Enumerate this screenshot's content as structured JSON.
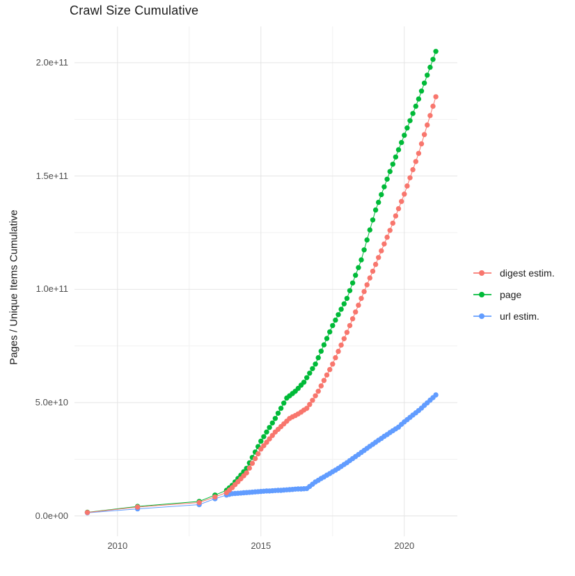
{
  "title": "Crawl Size Cumulative",
  "y_axis": {
    "label": "Pages / Unique Items Cumulative",
    "ticks": [
      {
        "v": 0,
        "label": "0.0e+00"
      },
      {
        "v": 50,
        "label": "5.0e+10"
      },
      {
        "v": 100,
        "label": "1.0e+11"
      },
      {
        "v": 150,
        "label": "1.5e+11"
      },
      {
        "v": 200,
        "label": "2.0e+11"
      }
    ],
    "minor": [
      25,
      75,
      125,
      175
    ]
  },
  "x_axis": {
    "ticks": [
      {
        "v": 2010,
        "label": "2010"
      },
      {
        "v": 2015,
        "label": "2015"
      },
      {
        "v": 2020,
        "label": "2020"
      }
    ],
    "minor": [
      2012.5,
      2017.5
    ]
  },
  "legend": {
    "items": [
      {
        "label": "digest estim.",
        "color": "#F8766D"
      },
      {
        "label": "page",
        "color": "#00BA38"
      },
      {
        "label": "url estim.",
        "color": "#619CFF"
      }
    ]
  },
  "colors": {
    "background": "#ffffff",
    "grid_major": "#e4e4e4",
    "grid_minor": "#f1f1f1",
    "text_dark": "#1a1a1a",
    "text_tick": "#4d4d4d",
    "series_digest": "#F8766D",
    "series_page": "#00BA38",
    "series_url": "#619CFF"
  },
  "chart_data": {
    "type": "line",
    "title": "Crawl Size Cumulative",
    "xlabel": "",
    "ylabel": "Pages / Unique Items Cumulative",
    "x_unit": "year (decimal date of crawl)",
    "y_unit": "cumulative items, billions (1e9)",
    "xlim": [
      2008.5,
      2021.85
    ],
    "ylim": [
      -9,
      216
    ],
    "grid": true,
    "legend_position": "right",
    "marker": "point",
    "series": [
      {
        "name": "page",
        "color": "#00BA38",
        "points": [
          [
            2008.95,
            1.6
          ],
          [
            2010.7,
            4.2
          ],
          [
            2012.85,
            6.4
          ],
          [
            2013.4,
            9.2
          ],
          [
            2013.8,
            11.3
          ],
          [
            2013.9,
            12.4
          ],
          [
            2014.0,
            13.5
          ],
          [
            2014.1,
            15.0
          ],
          [
            2014.2,
            16.5
          ],
          [
            2014.3,
            18.0
          ],
          [
            2014.4,
            19.5
          ],
          [
            2014.5,
            21.0
          ],
          [
            2014.6,
            23.4
          ],
          [
            2014.7,
            25.8
          ],
          [
            2014.8,
            28.2
          ],
          [
            2014.9,
            30.6
          ],
          [
            2015.0,
            33.0
          ],
          [
            2015.1,
            35.0
          ],
          [
            2015.2,
            37.0
          ],
          [
            2015.3,
            39.0
          ],
          [
            2015.4,
            41.0
          ],
          [
            2015.5,
            43.0
          ],
          [
            2015.6,
            45.3
          ],
          [
            2015.7,
            47.5
          ],
          [
            2015.8,
            49.8
          ],
          [
            2015.9,
            52.0
          ],
          [
            2016.0,
            53.0
          ],
          [
            2016.1,
            54.0
          ],
          [
            2016.2,
            55.0
          ],
          [
            2016.3,
            56.3
          ],
          [
            2016.4,
            57.7
          ],
          [
            2016.5,
            59.0
          ],
          [
            2016.6,
            61.0
          ],
          [
            2016.7,
            63.0
          ],
          [
            2016.8,
            65.0
          ],
          [
            2016.9,
            67.0
          ],
          [
            2017.0,
            69.8
          ],
          [
            2017.1,
            72.7
          ],
          [
            2017.2,
            75.5
          ],
          [
            2017.3,
            78.3
          ],
          [
            2017.4,
            81.2
          ],
          [
            2017.5,
            84.0
          ],
          [
            2017.6,
            86.4
          ],
          [
            2017.7,
            88.8
          ],
          [
            2017.8,
            91.2
          ],
          [
            2017.9,
            93.6
          ],
          [
            2018.0,
            96.0
          ],
          [
            2018.1,
            99.4
          ],
          [
            2018.2,
            102.8
          ],
          [
            2018.3,
            106.2
          ],
          [
            2018.4,
            109.6
          ],
          [
            2018.5,
            113.0
          ],
          [
            2018.6,
            117.4
          ],
          [
            2018.7,
            121.8
          ],
          [
            2018.8,
            126.2
          ],
          [
            2018.9,
            130.6
          ],
          [
            2019.0,
            135.0
          ],
          [
            2019.1,
            138.4
          ],
          [
            2019.2,
            141.8
          ],
          [
            2019.3,
            145.2
          ],
          [
            2019.4,
            148.6
          ],
          [
            2019.5,
            152.0
          ],
          [
            2019.6,
            155.2
          ],
          [
            2019.7,
            158.4
          ],
          [
            2019.8,
            161.6
          ],
          [
            2019.9,
            164.8
          ],
          [
            2020.0,
            168.0
          ],
          [
            2020.1,
            171.2
          ],
          [
            2020.2,
            174.4
          ],
          [
            2020.3,
            177.6
          ],
          [
            2020.4,
            180.8
          ],
          [
            2020.5,
            184.0
          ],
          [
            2020.6,
            187.5
          ],
          [
            2020.7,
            191.0
          ],
          [
            2020.8,
            194.5
          ],
          [
            2020.9,
            198.0
          ],
          [
            2021.0,
            201.5
          ],
          [
            2021.1,
            205.0
          ]
        ]
      },
      {
        "name": "url estim.",
        "color": "#619CFF",
        "points": [
          [
            2008.95,
            1.4
          ],
          [
            2010.7,
            3.1
          ],
          [
            2012.85,
            5.0
          ],
          [
            2013.4,
            7.6
          ],
          [
            2013.8,
            9.2
          ],
          [
            2013.9,
            9.5
          ],
          [
            2014.0,
            9.8
          ],
          [
            2014.1,
            9.9
          ],
          [
            2014.2,
            10.0
          ],
          [
            2014.3,
            10.1
          ],
          [
            2014.4,
            10.2
          ],
          [
            2014.5,
            10.3
          ],
          [
            2014.6,
            10.4
          ],
          [
            2014.7,
            10.5
          ],
          [
            2014.8,
            10.6
          ],
          [
            2014.9,
            10.7
          ],
          [
            2015.0,
            10.8
          ],
          [
            2015.1,
            10.9
          ],
          [
            2015.2,
            11.0
          ],
          [
            2015.3,
            11.0
          ],
          [
            2015.4,
            11.1
          ],
          [
            2015.5,
            11.2
          ],
          [
            2015.6,
            11.3
          ],
          [
            2015.7,
            11.3
          ],
          [
            2015.8,
            11.4
          ],
          [
            2015.9,
            11.5
          ],
          [
            2016.0,
            11.6
          ],
          [
            2016.1,
            11.7
          ],
          [
            2016.2,
            11.8
          ],
          [
            2016.3,
            11.9
          ],
          [
            2016.4,
            11.9
          ],
          [
            2016.5,
            12.0
          ],
          [
            2016.6,
            12.1
          ],
          [
            2016.7,
            13.0
          ],
          [
            2016.8,
            14.0
          ],
          [
            2016.9,
            15.0
          ],
          [
            2017.0,
            15.7
          ],
          [
            2017.1,
            16.5
          ],
          [
            2017.2,
            17.2
          ],
          [
            2017.3,
            18.0
          ],
          [
            2017.4,
            18.7
          ],
          [
            2017.5,
            19.5
          ],
          [
            2017.6,
            20.2
          ],
          [
            2017.7,
            21.0
          ],
          [
            2017.8,
            21.8
          ],
          [
            2017.9,
            22.7
          ],
          [
            2018.0,
            23.5
          ],
          [
            2018.1,
            24.4
          ],
          [
            2018.2,
            25.3
          ],
          [
            2018.3,
            26.2
          ],
          [
            2018.4,
            27.1
          ],
          [
            2018.5,
            28.0
          ],
          [
            2018.6,
            28.9
          ],
          [
            2018.7,
            29.8
          ],
          [
            2018.8,
            30.7
          ],
          [
            2018.9,
            31.6
          ],
          [
            2019.0,
            32.5
          ],
          [
            2019.1,
            33.4
          ],
          [
            2019.2,
            34.2
          ],
          [
            2019.3,
            35.1
          ],
          [
            2019.4,
            35.9
          ],
          [
            2019.5,
            36.8
          ],
          [
            2019.6,
            37.6
          ],
          [
            2019.7,
            38.4
          ],
          [
            2019.8,
            39.2
          ],
          [
            2019.9,
            40.4
          ],
          [
            2020.0,
            41.5
          ],
          [
            2020.1,
            42.5
          ],
          [
            2020.2,
            43.5
          ],
          [
            2020.3,
            44.5
          ],
          [
            2020.4,
            45.5
          ],
          [
            2020.5,
            46.5
          ],
          [
            2020.6,
            47.6
          ],
          [
            2020.7,
            48.8
          ],
          [
            2020.8,
            49.9
          ],
          [
            2020.9,
            51.1
          ],
          [
            2021.0,
            52.2
          ],
          [
            2021.1,
            53.4
          ]
        ]
      },
      {
        "name": "digest estim.",
        "color": "#F8766D",
        "points": [
          [
            2008.95,
            1.5
          ],
          [
            2010.7,
            3.9
          ],
          [
            2012.85,
            5.9
          ],
          [
            2013.4,
            8.4
          ],
          [
            2013.8,
            10.3
          ],
          [
            2013.9,
            11.4
          ],
          [
            2014.0,
            12.5
          ],
          [
            2014.1,
            13.8
          ],
          [
            2014.2,
            15.1
          ],
          [
            2014.3,
            16.4
          ],
          [
            2014.4,
            17.7
          ],
          [
            2014.5,
            19.0
          ],
          [
            2014.6,
            21.1
          ],
          [
            2014.7,
            23.2
          ],
          [
            2014.8,
            25.3
          ],
          [
            2014.9,
            27.4
          ],
          [
            2015.0,
            29.5
          ],
          [
            2015.1,
            31.0
          ],
          [
            2015.2,
            32.5
          ],
          [
            2015.3,
            34.0
          ],
          [
            2015.4,
            35.5
          ],
          [
            2015.5,
            37.0
          ],
          [
            2015.6,
            38.2
          ],
          [
            2015.7,
            39.4
          ],
          [
            2015.8,
            40.6
          ],
          [
            2015.9,
            41.8
          ],
          [
            2016.0,
            43.0
          ],
          [
            2016.1,
            43.7
          ],
          [
            2016.2,
            44.3
          ],
          [
            2016.3,
            45.0
          ],
          [
            2016.4,
            45.8
          ],
          [
            2016.5,
            46.7
          ],
          [
            2016.6,
            47.5
          ],
          [
            2016.7,
            49.2
          ],
          [
            2016.8,
            51.0
          ],
          [
            2016.9,
            53.0
          ],
          [
            2017.0,
            55.0
          ],
          [
            2017.1,
            57.4
          ],
          [
            2017.2,
            59.8
          ],
          [
            2017.3,
            62.2
          ],
          [
            2017.4,
            64.6
          ],
          [
            2017.5,
            67.0
          ],
          [
            2017.6,
            69.8
          ],
          [
            2017.7,
            72.6
          ],
          [
            2017.8,
            75.4
          ],
          [
            2017.9,
            78.2
          ],
          [
            2018.0,
            81.0
          ],
          [
            2018.1,
            84.0
          ],
          [
            2018.2,
            87.0
          ],
          [
            2018.3,
            90.0
          ],
          [
            2018.4,
            93.0
          ],
          [
            2018.5,
            96.0
          ],
          [
            2018.6,
            99.0
          ],
          [
            2018.7,
            102.0
          ],
          [
            2018.8,
            105.0
          ],
          [
            2018.9,
            108.0
          ],
          [
            2019.0,
            111.0
          ],
          [
            2019.1,
            114.0
          ],
          [
            2019.2,
            117.0
          ],
          [
            2019.3,
            120.0
          ],
          [
            2019.4,
            123.0
          ],
          [
            2019.5,
            126.0
          ],
          [
            2019.6,
            129.2
          ],
          [
            2019.7,
            132.4
          ],
          [
            2019.8,
            135.6
          ],
          [
            2019.9,
            138.8
          ],
          [
            2020.0,
            142.0
          ],
          [
            2020.1,
            145.6
          ],
          [
            2020.2,
            149.2
          ],
          [
            2020.3,
            152.8
          ],
          [
            2020.4,
            156.4
          ],
          [
            2020.5,
            160.0
          ],
          [
            2020.6,
            164.2
          ],
          [
            2020.7,
            168.3
          ],
          [
            2020.8,
            172.5
          ],
          [
            2020.9,
            176.7
          ],
          [
            2021.0,
            180.8
          ],
          [
            2021.1,
            185.0
          ]
        ]
      }
    ]
  }
}
